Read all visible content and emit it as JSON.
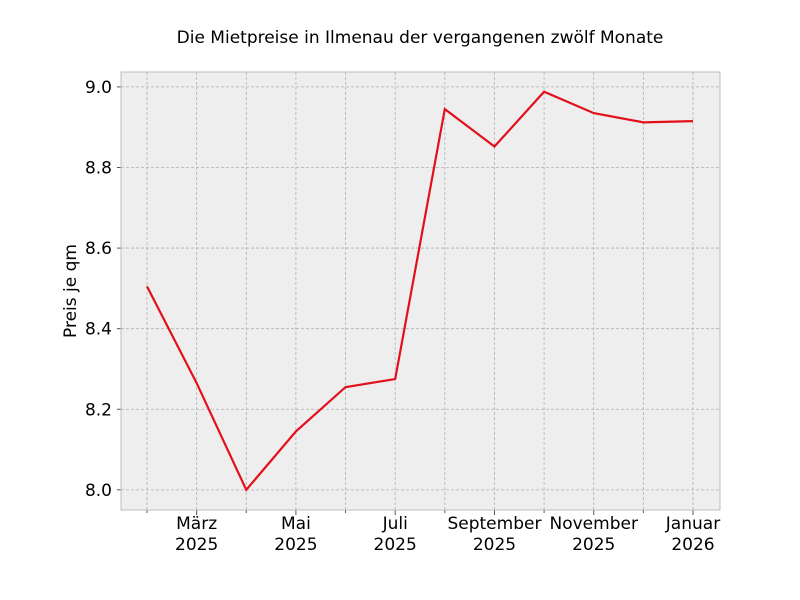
{
  "chart_data": {
    "type": "line",
    "title": "Die Mietpreise in Ilmenau der vergangenen zwölf Monate",
    "y_label": "Preis je qm",
    "categories": [
      null,
      [
        "März",
        "2025"
      ],
      null,
      [
        "Mai",
        "2025"
      ],
      null,
      [
        "Juli",
        "2025"
      ],
      null,
      [
        "September",
        "2025"
      ],
      null,
      [
        "November",
        "2025"
      ],
      null,
      [
        "Januar",
        "2026"
      ]
    ],
    "series": [
      {
        "color": "#e3101c",
        "values": [
          8.505,
          8.265,
          8.0,
          8.145,
          8.255,
          8.275,
          8.945,
          8.852,
          8.988,
          8.935,
          8.912,
          8.915
        ]
      }
    ],
    "ylim": [
      7.95,
      9.037
    ],
    "yticks": [
      {
        "value": 8,
        "label": "8.0"
      },
      8.2,
      8.4,
      8.6,
      8.8,
      {
        "value": 9,
        "label": "9.0"
      }
    ],
    "grid": true
  }
}
